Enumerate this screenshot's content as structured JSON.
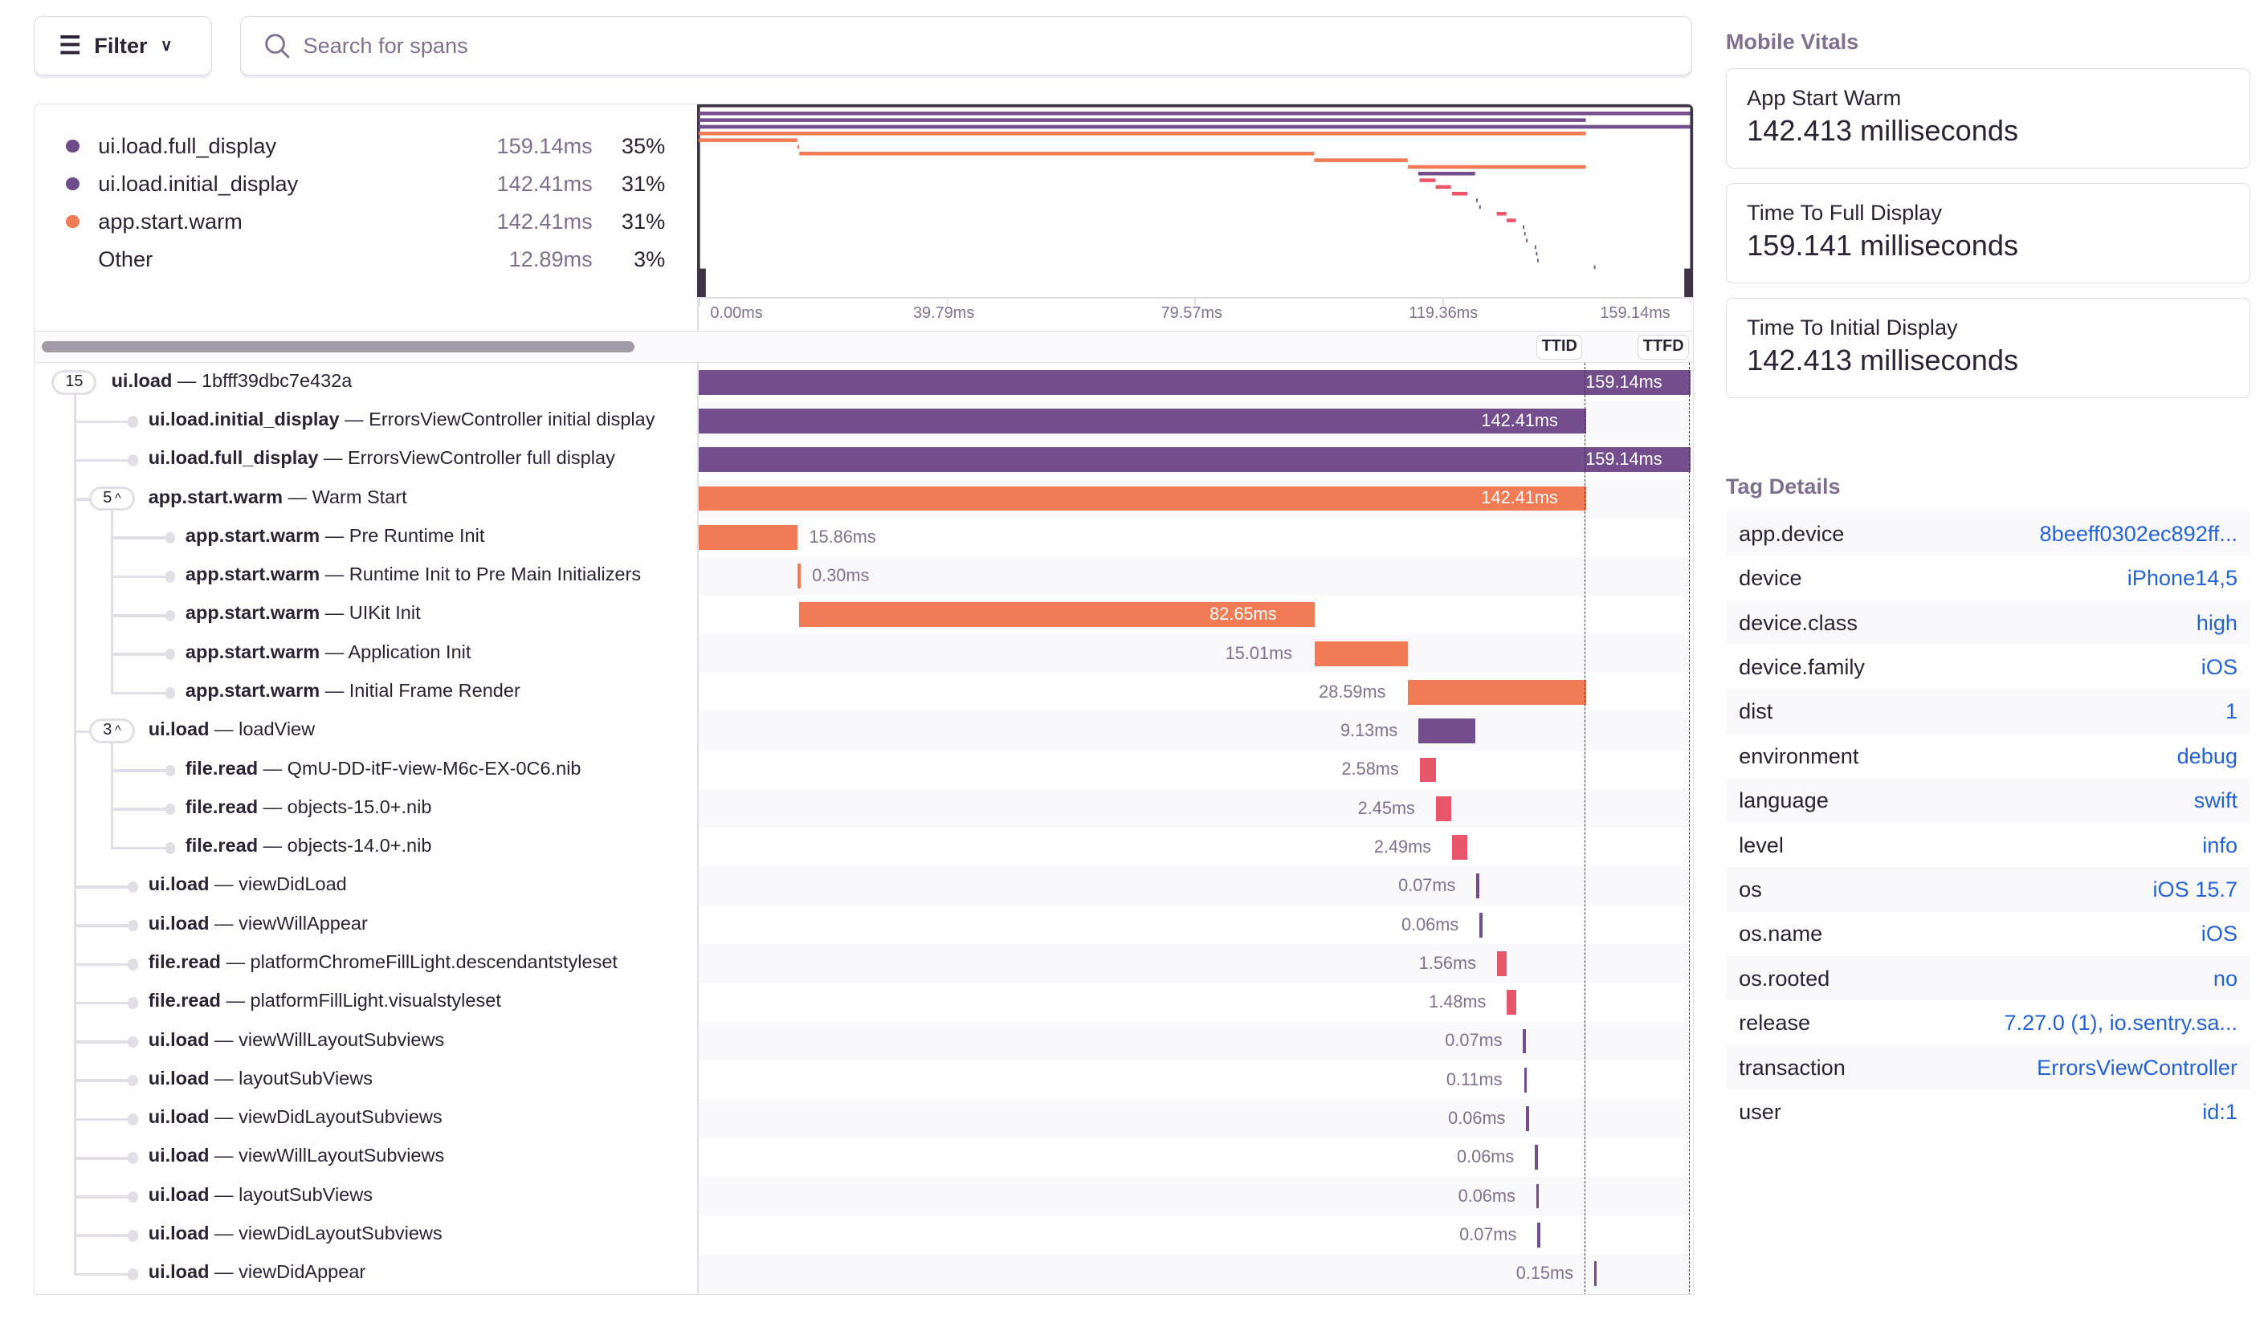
{
  "toolbar": {
    "filter_label": "Filter",
    "search_placeholder": "Search for spans"
  },
  "legend": [
    {
      "name": "ui.load.full_display",
      "duration": "159.14ms",
      "percent": "35%",
      "color": "#6e4b8b"
    },
    {
      "name": "ui.load.initial_display",
      "duration": "142.41ms",
      "percent": "31%",
      "color": "#6e4b8b"
    },
    {
      "name": "app.start.warm",
      "duration": "142.41ms",
      "percent": "31%",
      "color": "#f07b55"
    },
    {
      "name": "Other",
      "duration": "12.89ms",
      "percent": "3%",
      "color": ""
    }
  ],
  "axis": {
    "ticks": [
      "0.00ms",
      "39.79ms",
      "79.57ms",
      "119.36ms",
      "159.14ms"
    ],
    "total_ms": 159.14
  },
  "markers": [
    {
      "label": "TTID",
      "ms": 142.41
    },
    {
      "label": "TTFD",
      "ms": 159.14
    }
  ],
  "colors": {
    "ui": "#744e8c",
    "app": "#f07b55",
    "file": "#e8566b"
  },
  "spans": [
    {
      "op": "ui.load",
      "desc": "1bfff39dbc7e432a",
      "depth": 0,
      "children": "15",
      "start_ms": 0,
      "duration_ms": 159.14,
      "duration": "159.14ms",
      "kind": "ui"
    },
    {
      "op": "ui.load.initial_display",
      "desc": "ErrorsViewController initial display",
      "depth": 1,
      "start_ms": 0,
      "duration_ms": 142.41,
      "duration": "142.41ms",
      "kind": "ui"
    },
    {
      "op": "ui.load.full_display",
      "desc": "ErrorsViewController full display",
      "depth": 1,
      "start_ms": 0,
      "duration_ms": 159.14,
      "duration": "159.14ms",
      "kind": "ui"
    },
    {
      "op": "app.start.warm",
      "desc": "Warm Start",
      "depth": 1,
      "children": "5",
      "start_ms": 0,
      "duration_ms": 142.41,
      "duration": "142.41ms",
      "kind": "app"
    },
    {
      "op": "app.start.warm",
      "desc": "Pre Runtime Init",
      "depth": 2,
      "start_ms": 0,
      "duration_ms": 15.86,
      "duration": "15.86ms",
      "kind": "app"
    },
    {
      "op": "app.start.warm",
      "desc": "Runtime Init to Pre Main Initializers",
      "depth": 2,
      "start_ms": 15.86,
      "duration_ms": 0.3,
      "duration": "0.30ms",
      "kind": "app"
    },
    {
      "op": "app.start.warm",
      "desc": "UIKit Init",
      "depth": 2,
      "start_ms": 16.16,
      "duration_ms": 82.65,
      "duration": "82.65ms",
      "kind": "app"
    },
    {
      "op": "app.start.warm",
      "desc": "Application Init",
      "depth": 2,
      "start_ms": 98.81,
      "duration_ms": 15.01,
      "duration": "15.01ms",
      "kind": "app"
    },
    {
      "op": "app.start.warm",
      "desc": "Initial Frame Render",
      "depth": 2,
      "start_ms": 113.82,
      "duration_ms": 28.59,
      "duration": "28.59ms",
      "kind": "app"
    },
    {
      "op": "ui.load",
      "desc": "loadView",
      "depth": 1,
      "children": "3",
      "start_ms": 115.5,
      "duration_ms": 9.13,
      "duration": "9.13ms",
      "kind": "ui"
    },
    {
      "op": "file.read",
      "desc": "QmU-DD-itF-view-M6c-EX-0C6.nib",
      "depth": 2,
      "start_ms": 115.7,
      "duration_ms": 2.58,
      "duration": "2.58ms",
      "kind": "file"
    },
    {
      "op": "file.read",
      "desc": "objects-15.0+.nib",
      "depth": 2,
      "start_ms": 118.3,
      "duration_ms": 2.45,
      "duration": "2.45ms",
      "kind": "file"
    },
    {
      "op": "file.read",
      "desc": "objects-14.0+.nib",
      "depth": 2,
      "start_ms": 120.9,
      "duration_ms": 2.49,
      "duration": "2.49ms",
      "kind": "file"
    },
    {
      "op": "ui.load",
      "desc": "viewDidLoad",
      "depth": 1,
      "start_ms": 124.8,
      "duration_ms": 0.07,
      "duration": "0.07ms",
      "kind": "ui"
    },
    {
      "op": "ui.load",
      "desc": "viewWillAppear",
      "depth": 1,
      "start_ms": 125.3,
      "duration_ms": 0.06,
      "duration": "0.06ms",
      "kind": "ui"
    },
    {
      "op": "file.read",
      "desc": "platformChromeFillLight.descendantstyleset",
      "depth": 1,
      "start_ms": 128.1,
      "duration_ms": 1.56,
      "duration": "1.56ms",
      "kind": "file"
    },
    {
      "op": "file.read",
      "desc": "platformFillLight.visualstyleset",
      "depth": 1,
      "start_ms": 129.7,
      "duration_ms": 1.48,
      "duration": "1.48ms",
      "kind": "file"
    },
    {
      "op": "ui.load",
      "desc": "viewWillLayoutSubviews",
      "depth": 1,
      "start_ms": 132.3,
      "duration_ms": 0.07,
      "duration": "0.07ms",
      "kind": "ui"
    },
    {
      "op": "ui.load",
      "desc": "layoutSubViews",
      "depth": 1,
      "start_ms": 132.5,
      "duration_ms": 0.11,
      "duration": "0.11ms",
      "kind": "ui"
    },
    {
      "op": "ui.load",
      "desc": "viewDidLayoutSubviews",
      "depth": 1,
      "start_ms": 132.8,
      "duration_ms": 0.06,
      "duration": "0.06ms",
      "kind": "ui"
    },
    {
      "op": "ui.load",
      "desc": "viewWillLayoutSubviews",
      "depth": 1,
      "start_ms": 134.2,
      "duration_ms": 0.06,
      "duration": "0.06ms",
      "kind": "ui"
    },
    {
      "op": "ui.load",
      "desc": "layoutSubViews",
      "depth": 1,
      "start_ms": 134.4,
      "duration_ms": 0.06,
      "duration": "0.06ms",
      "kind": "ui"
    },
    {
      "op": "ui.load",
      "desc": "viewDidLayoutSubviews",
      "depth": 1,
      "start_ms": 134.6,
      "duration_ms": 0.07,
      "duration": "0.07ms",
      "kind": "ui"
    },
    {
      "op": "ui.load",
      "desc": "viewDidAppear",
      "depth": 1,
      "start_ms": 143.7,
      "duration_ms": 0.15,
      "duration": "0.15ms",
      "kind": "ui"
    }
  ],
  "mobile_vitals": {
    "title": "Mobile Vitals",
    "items": [
      {
        "label": "App Start Warm",
        "value": "142.413 milliseconds"
      },
      {
        "label": "Time To Full Display",
        "value": "159.141 milliseconds"
      },
      {
        "label": "Time To Initial Display",
        "value": "142.413 milliseconds"
      }
    ]
  },
  "tag_details": {
    "title": "Tag Details",
    "items": [
      {
        "key": "app.device",
        "value": "8beeff0302ec892ff..."
      },
      {
        "key": "device",
        "value": "iPhone14,5"
      },
      {
        "key": "device.class",
        "value": "high"
      },
      {
        "key": "device.family",
        "value": "iOS"
      },
      {
        "key": "dist",
        "value": "1"
      },
      {
        "key": "environment",
        "value": "debug"
      },
      {
        "key": "language",
        "value": "swift"
      },
      {
        "key": "level",
        "value": "info"
      },
      {
        "key": "os",
        "value": "iOS 15.7"
      },
      {
        "key": "os.name",
        "value": "iOS"
      },
      {
        "key": "os.rooted",
        "value": "no"
      },
      {
        "key": "release",
        "value": "7.27.0 (1), io.sentry.sa..."
      },
      {
        "key": "transaction",
        "value": "ErrorsViewController"
      },
      {
        "key": "user",
        "value": "id:1"
      }
    ]
  }
}
